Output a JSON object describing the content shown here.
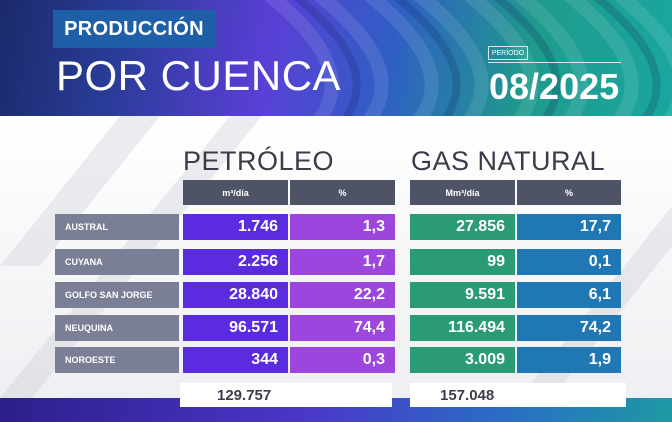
{
  "header": {
    "badge": "PRODUCCIÓN",
    "title": "POR CUENCA",
    "periodo_label": "PERÍODO",
    "periodo_value": "08/2025"
  },
  "sections": {
    "petroleo": {
      "title": "PETRÓLEO",
      "col_value": "m³/día",
      "col_pct": "%"
    },
    "gas": {
      "title": "GAS NATURAL",
      "col_value": "Mm³/día",
      "col_pct": "%"
    }
  },
  "rows": [
    {
      "cuenca": "AUSTRAL",
      "petroleo_m3": "1.746",
      "petroleo_pct": "1,3",
      "gas_m3": "27.856",
      "gas_pct": "17,7"
    },
    {
      "cuenca": "CUYANA",
      "petroleo_m3": "2.256",
      "petroleo_pct": "1,7",
      "gas_m3": "99",
      "gas_pct": "0,1"
    },
    {
      "cuenca": "GOLFO SAN JORGE",
      "petroleo_m3": "28.840",
      "petroleo_pct": "22,2",
      "gas_m3": "9.591",
      "gas_pct": "6,1"
    },
    {
      "cuenca": "NEUQUINA",
      "petroleo_m3": "96.571",
      "petroleo_pct": "74,4",
      "gas_m3": "116.494",
      "gas_pct": "74,2"
    },
    {
      "cuenca": "NOROESTE",
      "petroleo_m3": "344",
      "petroleo_pct": "0,3",
      "gas_m3": "3.009",
      "gas_pct": "1,9"
    }
  ],
  "totals": {
    "petroleo": "129.757",
    "gas": "157.048"
  },
  "colors": {
    "petroleo_value": "#5b2be0",
    "petroleo_pct": "#9d46de",
    "gas_value": "#2a9a77",
    "gas_pct": "#1f78b4",
    "row_label": "#7a7f96",
    "header_cell": "#4e5366",
    "badge": "#1f5fa8"
  }
}
